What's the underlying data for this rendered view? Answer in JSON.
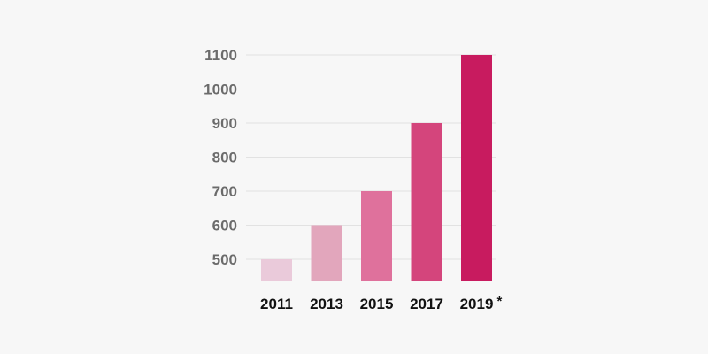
{
  "chart_data": {
    "type": "bar",
    "categories": [
      "2011",
      "2013",
      "2015",
      "2017",
      "2019"
    ],
    "values": [
      500,
      600,
      700,
      900,
      1100
    ],
    "category_notes": [
      "",
      "",
      "",
      "",
      "*"
    ],
    "bar_colors": [
      "#eacada",
      "#e2a6bc",
      "#df719c",
      "#d4457c",
      "#c81b5f"
    ],
    "yticks": [
      500,
      600,
      700,
      800,
      900,
      1000,
      1100
    ],
    "ylim": [
      435,
      1100
    ],
    "grid": true,
    "legend": "none",
    "title": "",
    "xlabel": "",
    "ylabel": ""
  },
  "colors": {
    "background": "#f7f7f7",
    "gridline": "#e2e2e2",
    "tick_text": "#6b6b6b",
    "category_text": "#111111"
  }
}
